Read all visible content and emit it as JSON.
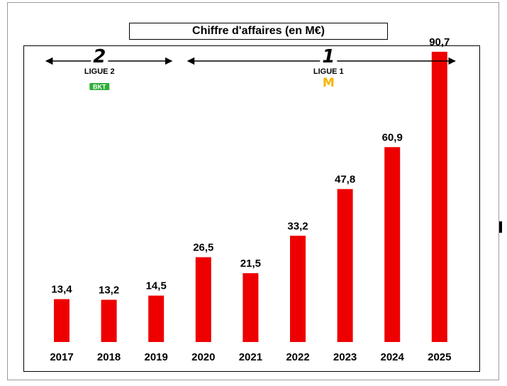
{
  "chart_data": {
    "type": "bar",
    "title": "Chiffre d'affaires (en M€)",
    "categories": [
      "2017",
      "2018",
      "2019",
      "2020",
      "2021",
      "2022",
      "2023",
      "2024",
      "2025"
    ],
    "values": [
      13.4,
      13.2,
      14.5,
      26.5,
      21.5,
      33.2,
      47.8,
      60.9,
      90.7
    ],
    "value_labels": [
      "13,4",
      "13,2",
      "14,5",
      "26,5",
      "21,5",
      "33,2",
      "47,8",
      "60,9",
      "90,7"
    ],
    "ylim": [
      0,
      100
    ],
    "grid": false,
    "legend": "none",
    "bar_color": "#ee0000",
    "annotations": [
      {
        "logo_number": "2",
        "league": "LIGUE 2",
        "sponsor": "BKT",
        "sponsor_color": "#2fae3b",
        "range": [
          "2017",
          "2019"
        ]
      },
      {
        "logo_number": "1",
        "league": "LIGUE 1",
        "sponsor": "M",
        "sponsor_color": "#f5b400",
        "range": [
          "2020",
          "2025"
        ]
      }
    ]
  }
}
